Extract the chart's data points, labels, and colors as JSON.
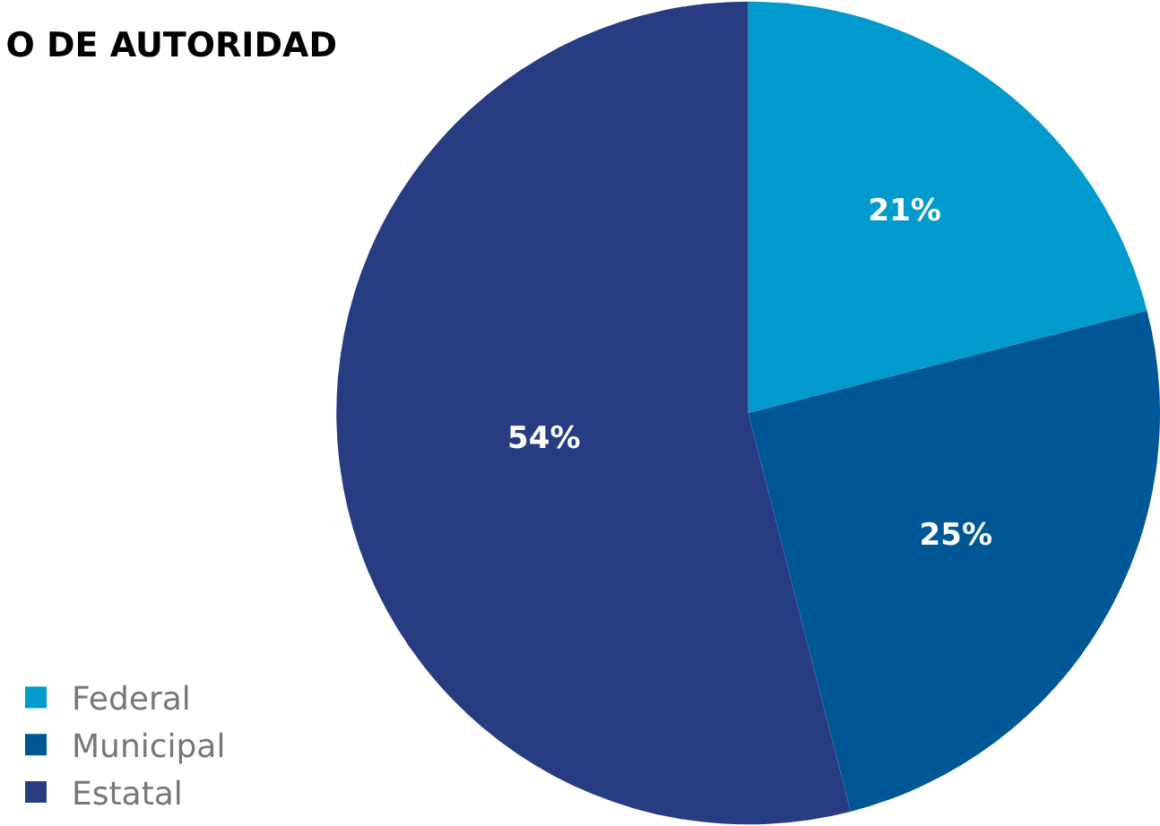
{
  "chart_data": {
    "type": "pie",
    "title": "O DE AUTORIDAD",
    "categories": [
      "Federal",
      "Municipal",
      "Estatal"
    ],
    "values": [
      21,
      25,
      54
    ],
    "colors": [
      "#009bcc",
      "#005796",
      "#273c81"
    ],
    "value_labels": [
      "21%",
      "25%",
      "54%"
    ],
    "legend": "bottom left"
  }
}
